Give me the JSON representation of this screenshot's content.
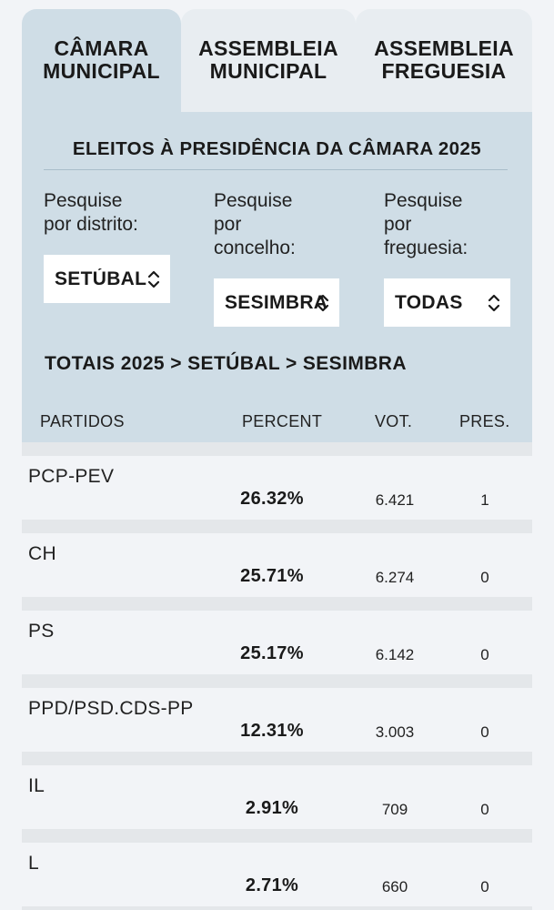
{
  "tabs": [
    {
      "label": "CÂMARA\nMUNICIPAL",
      "active": true
    },
    {
      "label": "ASSEMBLEIA\nMUNICIPAL",
      "active": false
    },
    {
      "label": "ASSEMBLEIA\nFREGUESIA",
      "active": false
    }
  ],
  "panel": {
    "title": "ELEITOS À PRESIDÊNCIA DA CÂMARA 2025",
    "filters": {
      "district": {
        "label": "Pesquise\npor distrito:",
        "value": "SETÚBAL"
      },
      "municipality": {
        "label": "Pesquise\npor\nconcelho:",
        "value": "SESIMBRA"
      },
      "parish": {
        "label": "Pesquise\npor\nfreguesia:",
        "value": "TODAS"
      }
    },
    "breadcrumb": "TOTAIS 2025 > SETÚBAL > SESIMBRA"
  },
  "table": {
    "headers": {
      "party": "PARTIDOS",
      "percent": "PERCENT",
      "votes": "VOT.",
      "pres": "PRES."
    },
    "rows": [
      {
        "party": "PCP-PEV",
        "percent": "26.32%",
        "votes": "6.421",
        "pres": "1"
      },
      {
        "party": "CH",
        "percent": "25.71%",
        "votes": "6.274",
        "pres": "0"
      },
      {
        "party": "PS",
        "percent": "25.17%",
        "votes": "6.142",
        "pres": "0"
      },
      {
        "party": "PPD/PSD.CDS-PP",
        "percent": "12.31%",
        "votes": "3.003",
        "pres": "0"
      },
      {
        "party": "IL",
        "percent": "2.91%",
        "votes": "709",
        "pres": "0"
      },
      {
        "party": "L",
        "percent": "2.71%",
        "votes": "660",
        "pres": "0"
      }
    ]
  }
}
